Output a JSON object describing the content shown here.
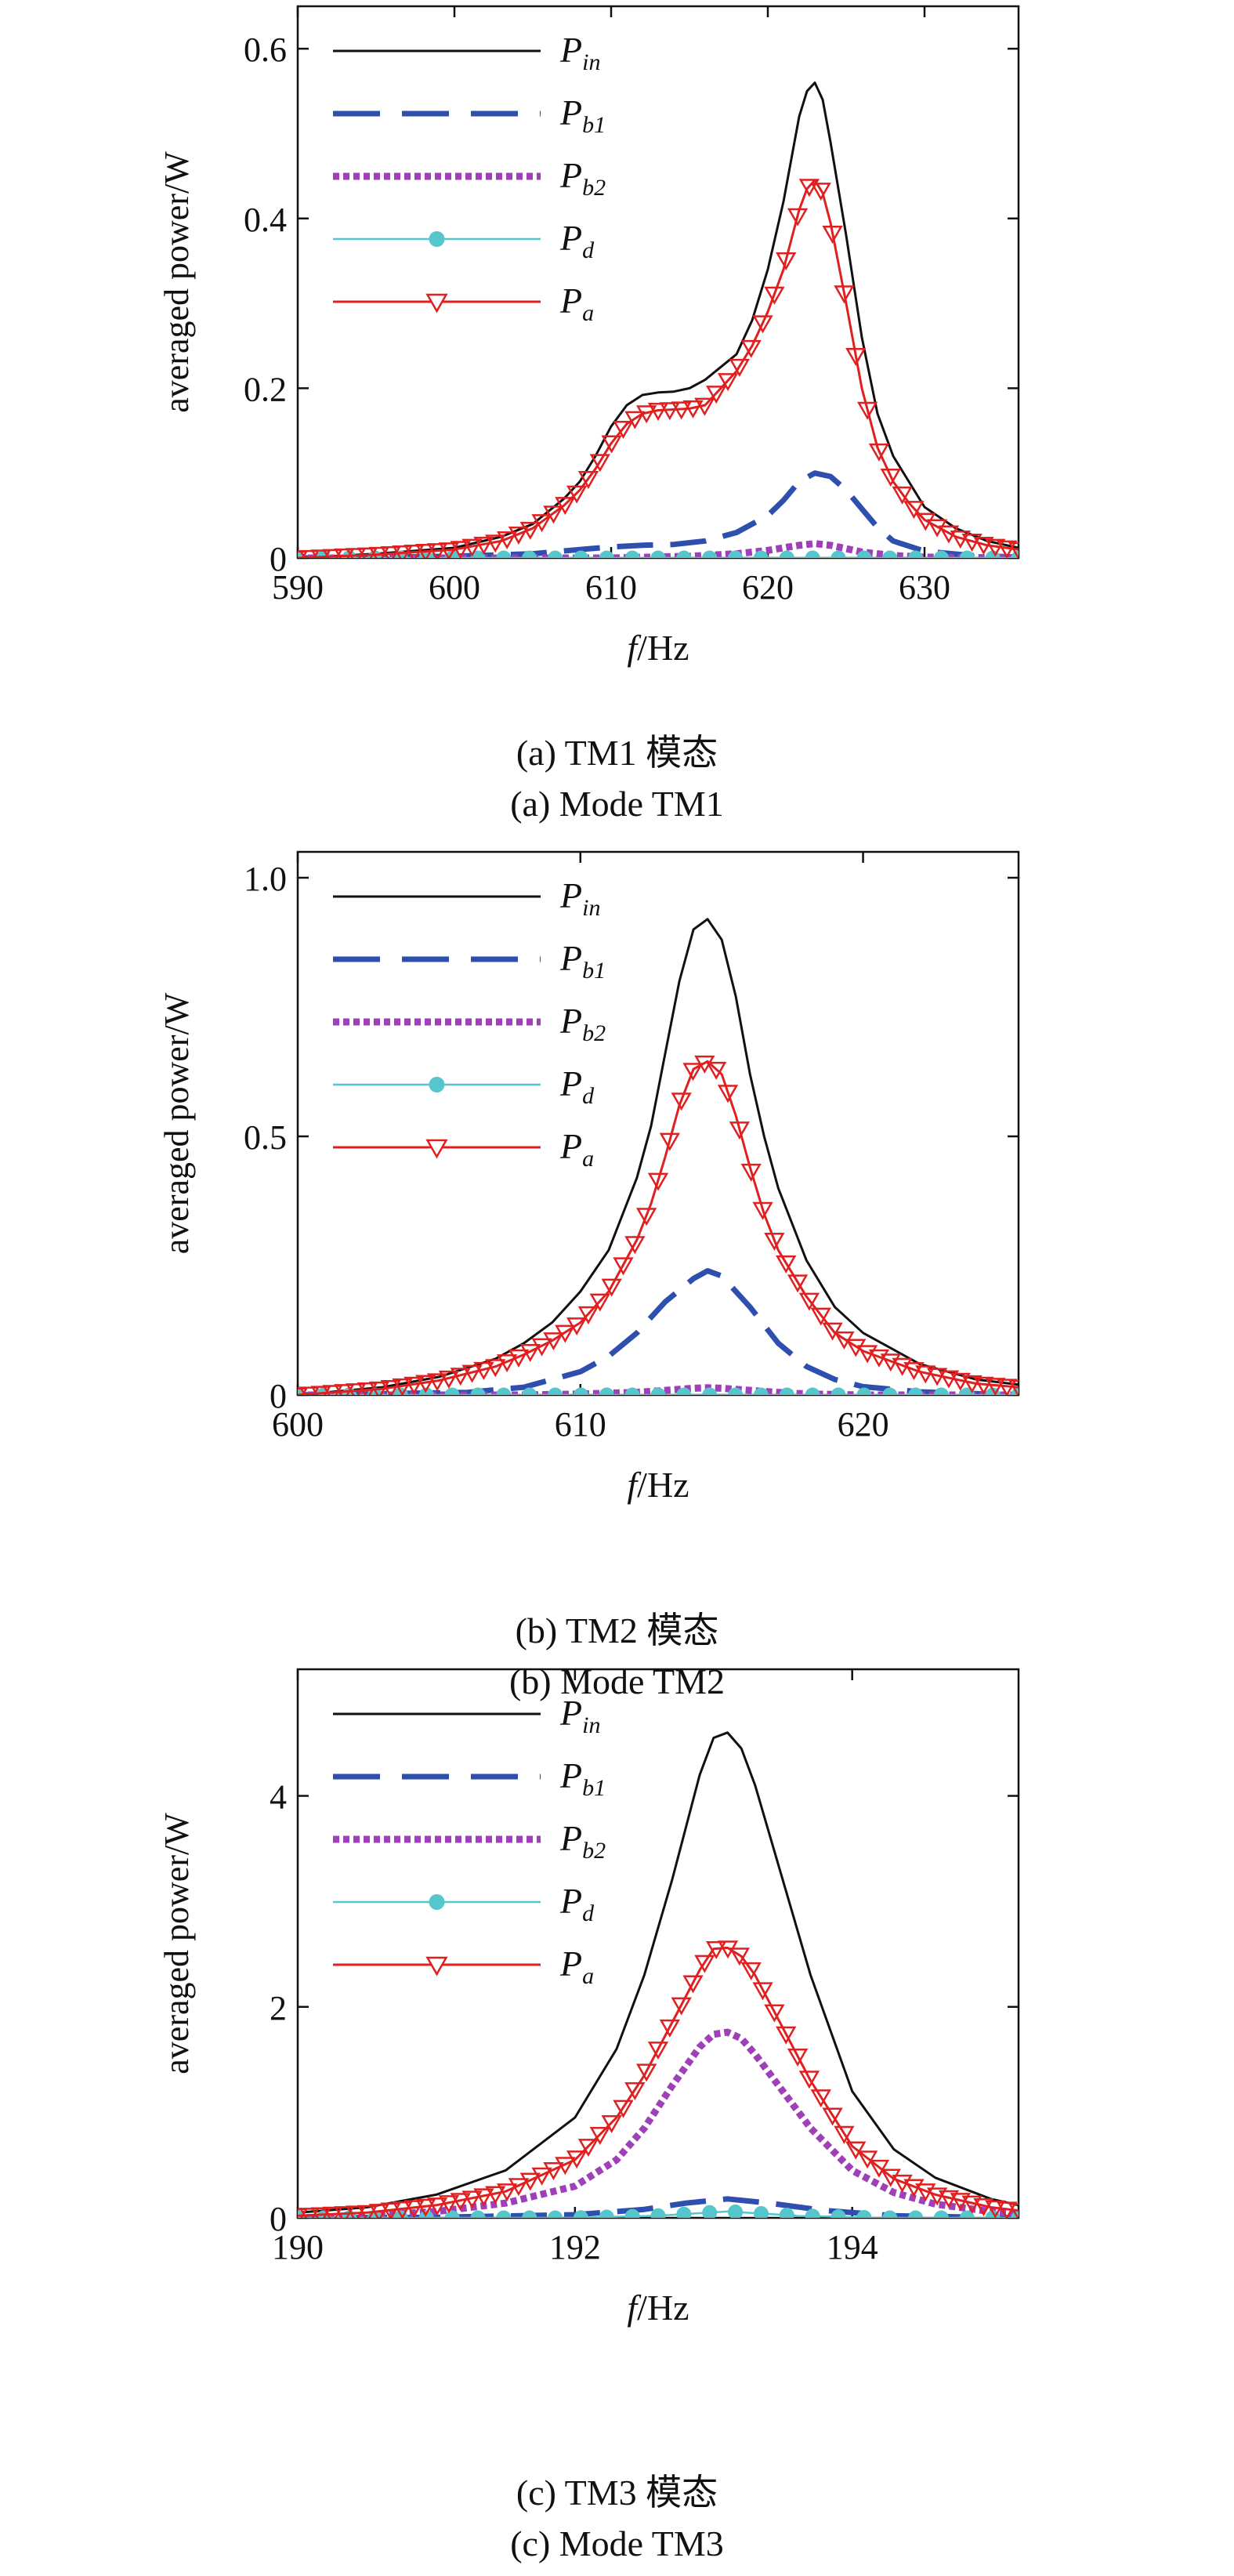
{
  "figure": {
    "captions": [
      {
        "zh": "(a) TM1 模态",
        "en": "(a) Mode TM1"
      },
      {
        "zh": "(b) TM2 模态",
        "en": "(b) Mode TM2"
      },
      {
        "zh": "(c) TM3 模态",
        "en": "(c) Mode TM3"
      }
    ]
  },
  "chart_data": [
    {
      "type": "line",
      "ylabel": "averaged power/W",
      "xlabel": {
        "italic": "f",
        "rest": "/Hz"
      },
      "xlim": [
        590,
        636
      ],
      "ylim": [
        0,
        0.65
      ],
      "xticks": [
        590,
        600,
        610,
        620,
        630
      ],
      "xtick_labels": [
        "590",
        "600",
        "610",
        "620",
        "630"
      ],
      "yticks": [
        0,
        0.2,
        0.4,
        0.6
      ],
      "ytick_labels": [
        "0",
        "0.2",
        "0.4",
        "0.6"
      ],
      "grid": false,
      "legend_position": "top-left",
      "series": [
        {
          "name": "P_in",
          "label_base": "P",
          "label_sub": "in",
          "color": "#111111",
          "style": "solid",
          "x": [
            590,
            595,
            600,
            603,
            605,
            607,
            608,
            609,
            610,
            611,
            612,
            613,
            614,
            615,
            616,
            617,
            618,
            619,
            620,
            621,
            622,
            622.5,
            623,
            623.5,
            624,
            625,
            626,
            627,
            628,
            629,
            630,
            632,
            634,
            636
          ],
          "y": [
            0.0,
            0.005,
            0.012,
            0.025,
            0.04,
            0.07,
            0.09,
            0.12,
            0.155,
            0.18,
            0.192,
            0.195,
            0.196,
            0.2,
            0.21,
            0.225,
            0.24,
            0.28,
            0.34,
            0.42,
            0.52,
            0.55,
            0.56,
            0.54,
            0.49,
            0.38,
            0.26,
            0.17,
            0.12,
            0.09,
            0.06,
            0.035,
            0.02,
            0.012
          ]
        },
        {
          "name": "P_b1",
          "label_base": "P",
          "label_sub": "b1",
          "color": "#2e4fae",
          "style": "dash",
          "x": [
            590,
            600,
            605,
            608,
            610,
            612,
            614,
            616,
            618,
            620,
            621,
            622,
            623,
            624,
            625,
            626,
            627,
            628,
            630,
            633,
            636
          ],
          "y": [
            0.0,
            0.002,
            0.005,
            0.01,
            0.013,
            0.015,
            0.016,
            0.02,
            0.03,
            0.05,
            0.068,
            0.09,
            0.1,
            0.096,
            0.08,
            0.058,
            0.036,
            0.02,
            0.008,
            0.003,
            0.001
          ]
        },
        {
          "name": "P_b2",
          "label_base": "P",
          "label_sub": "b2",
          "color": "#a040b8",
          "style": "dot",
          "x": [
            590,
            600,
            610,
            615,
            618,
            620,
            621,
            622,
            623,
            624,
            625,
            626,
            628,
            630,
            636
          ],
          "y": [
            0.0,
            0.0,
            0.0,
            0.002,
            0.005,
            0.009,
            0.012,
            0.015,
            0.017,
            0.015,
            0.011,
            0.007,
            0.003,
            0.001,
            0.0
          ]
        },
        {
          "name": "P_d",
          "label_base": "P",
          "label_sub": "d",
          "color": "#55c6cc",
          "style": "circle",
          "x": [
            590,
            636
          ],
          "y": [
            0.0,
            0.0
          ]
        },
        {
          "name": "P_a",
          "label_base": "P",
          "label_sub": "a",
          "color": "#e02020",
          "style": "triangle",
          "x": [
            590,
            595,
            600,
            603,
            605,
            607,
            608,
            609,
            610,
            611,
            612,
            613,
            614,
            615,
            616,
            617,
            618,
            619,
            620,
            621,
            622,
            622.5,
            623,
            623.5,
            624,
            625,
            626,
            627,
            628,
            629,
            630,
            632,
            634,
            636
          ],
          "y": [
            0.0,
            0.004,
            0.01,
            0.02,
            0.035,
            0.062,
            0.08,
            0.105,
            0.135,
            0.158,
            0.17,
            0.174,
            0.175,
            0.176,
            0.18,
            0.2,
            0.22,
            0.25,
            0.29,
            0.34,
            0.41,
            0.435,
            0.445,
            0.43,
            0.395,
            0.3,
            0.2,
            0.13,
            0.09,
            0.065,
            0.045,
            0.025,
            0.015,
            0.01
          ]
        }
      ]
    },
    {
      "type": "line",
      "ylabel": "averaged power/W",
      "xlabel": {
        "italic": "f",
        "rest": "/Hz"
      },
      "xlim": [
        600,
        625.5
      ],
      "ylim": [
        0,
        1.05
      ],
      "xticks": [
        600,
        610,
        620
      ],
      "xtick_labels": [
        "600",
        "610",
        "620"
      ],
      "yticks": [
        0,
        0.5,
        1.0
      ],
      "ytick_labels": [
        "0",
        "0.5",
        "1.0"
      ],
      "grid": false,
      "legend_position": "top-left",
      "series": [
        {
          "name": "P_in",
          "label_base": "P",
          "label_sub": "in",
          "color": "#111111",
          "style": "solid",
          "x": [
            600,
            603,
            605,
            607,
            608,
            609,
            610,
            611,
            612,
            612.5,
            613,
            613.5,
            614,
            614.5,
            615,
            615.5,
            616,
            616.5,
            617,
            618,
            619,
            620,
            622,
            624,
            625.5
          ],
          "y": [
            0.0,
            0.015,
            0.035,
            0.07,
            0.1,
            0.14,
            0.2,
            0.28,
            0.42,
            0.52,
            0.66,
            0.8,
            0.9,
            0.92,
            0.88,
            0.77,
            0.62,
            0.5,
            0.4,
            0.26,
            0.17,
            0.12,
            0.06,
            0.03,
            0.02
          ]
        },
        {
          "name": "P_b1",
          "label_base": "P",
          "label_sub": "b1",
          "color": "#2e4fae",
          "style": "dash",
          "x": [
            600,
            606,
            608,
            610,
            611,
            612,
            613,
            614,
            614.5,
            615,
            616,
            617,
            618,
            619,
            620,
            622,
            625.5
          ],
          "y": [
            0.0,
            0.005,
            0.015,
            0.045,
            0.075,
            0.12,
            0.18,
            0.225,
            0.24,
            0.23,
            0.17,
            0.1,
            0.055,
            0.03,
            0.016,
            0.006,
            0.0
          ]
        },
        {
          "name": "P_b2",
          "label_base": "P",
          "label_sub": "b2",
          "color": "#a040b8",
          "style": "dot",
          "x": [
            600,
            608,
            610,
            612,
            613,
            614,
            614.5,
            615,
            616,
            617,
            618,
            620,
            625.5
          ],
          "y": [
            0.0,
            0.0,
            0.002,
            0.005,
            0.009,
            0.013,
            0.014,
            0.013,
            0.009,
            0.005,
            0.002,
            0.0,
            0.0
          ]
        },
        {
          "name": "P_d",
          "label_base": "P",
          "label_sub": "d",
          "color": "#55c6cc",
          "style": "circle",
          "x": [
            600,
            625.5
          ],
          "y": [
            0.0,
            0.0
          ]
        },
        {
          "name": "P_a",
          "label_base": "P",
          "label_sub": "a",
          "color": "#e02020",
          "style": "triangle",
          "x": [
            600,
            603,
            605,
            607,
            608,
            609,
            610,
            611,
            612,
            612.5,
            613,
            613.5,
            614,
            614.5,
            615,
            615.5,
            616,
            616.5,
            617,
            618,
            619,
            620,
            622,
            624,
            625.5
          ],
          "y": [
            0.0,
            0.012,
            0.028,
            0.055,
            0.078,
            0.105,
            0.14,
            0.2,
            0.3,
            0.37,
            0.46,
            0.56,
            0.63,
            0.645,
            0.62,
            0.54,
            0.44,
            0.35,
            0.28,
            0.19,
            0.12,
            0.085,
            0.045,
            0.022,
            0.015
          ]
        }
      ]
    },
    {
      "type": "line",
      "ylabel": "averaged power/W",
      "xlabel": {
        "italic": "f",
        "rest": "/Hz"
      },
      "xlim": [
        190,
        195.2
      ],
      "ylim": [
        0,
        5.2
      ],
      "xticks": [
        190,
        192,
        194
      ],
      "xtick_labels": [
        "190",
        "192",
        "194"
      ],
      "yticks": [
        0,
        2,
        4
      ],
      "ytick_labels": [
        "0",
        "2",
        "4"
      ],
      "grid": false,
      "legend_position": "top-left",
      "series": [
        {
          "name": "P_in",
          "label_base": "P",
          "label_sub": "in",
          "color": "#111111",
          "style": "solid",
          "x": [
            190,
            190.5,
            191,
            191.5,
            192,
            192.3,
            192.5,
            192.7,
            192.9,
            193.0,
            193.1,
            193.2,
            193.3,
            193.5,
            193.7,
            194,
            194.3,
            194.6,
            195,
            195.2
          ],
          "y": [
            0.05,
            0.1,
            0.22,
            0.45,
            0.95,
            1.6,
            2.3,
            3.2,
            4.2,
            4.55,
            4.6,
            4.45,
            4.1,
            3.2,
            2.3,
            1.2,
            0.65,
            0.38,
            0.18,
            0.12
          ]
        },
        {
          "name": "P_b1",
          "label_base": "P",
          "label_sub": "b1",
          "color": "#2e4fae",
          "style": "dash",
          "x": [
            190,
            191,
            192,
            192.5,
            192.8,
            193.1,
            193.4,
            193.8,
            194.3,
            195.2
          ],
          "y": [
            0.0,
            0.005,
            0.03,
            0.08,
            0.14,
            0.18,
            0.14,
            0.07,
            0.02,
            0.0
          ]
        },
        {
          "name": "P_b2",
          "label_base": "P",
          "label_sub": "b2",
          "color": "#a040b8",
          "style": "dot",
          "x": [
            190,
            190.5,
            191,
            191.5,
            192,
            192.3,
            192.5,
            192.7,
            192.9,
            193.0,
            193.1,
            193.2,
            193.3,
            193.5,
            193.7,
            194,
            194.3,
            194.6,
            195,
            195.2
          ],
          "y": [
            0.0,
            0.02,
            0.06,
            0.14,
            0.3,
            0.55,
            0.85,
            1.25,
            1.62,
            1.74,
            1.76,
            1.7,
            1.55,
            1.2,
            0.85,
            0.45,
            0.24,
            0.13,
            0.06,
            0.04
          ]
        },
        {
          "name": "P_d",
          "label_base": "P",
          "label_sub": "d",
          "color": "#55c6cc",
          "style": "circle",
          "x": [
            190,
            192,
            192.6,
            193.1,
            193.6,
            194.2,
            195.2
          ],
          "y": [
            0.0,
            0.0,
            0.02,
            0.06,
            0.02,
            0.0,
            0.0
          ]
        },
        {
          "name": "P_a",
          "label_base": "P",
          "label_sub": "a",
          "color": "#e02020",
          "style": "triangle",
          "x": [
            190,
            190.5,
            191,
            191.5,
            192,
            192.3,
            192.5,
            192.7,
            192.9,
            193.0,
            193.1,
            193.2,
            193.3,
            193.5,
            193.7,
            194,
            194.3,
            194.6,
            195,
            195.2
          ],
          "y": [
            0.02,
            0.05,
            0.12,
            0.25,
            0.55,
            0.95,
            1.35,
            1.85,
            2.35,
            2.55,
            2.56,
            2.48,
            2.3,
            1.8,
            1.3,
            0.68,
            0.37,
            0.22,
            0.1,
            0.07
          ]
        }
      ]
    }
  ]
}
